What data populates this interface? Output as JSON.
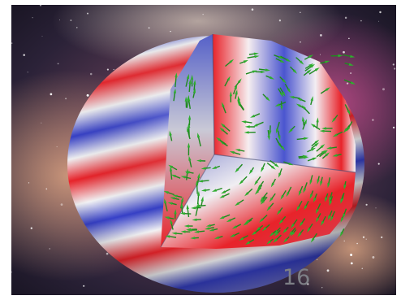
{
  "slide": {
    "page_number": "16",
    "illustration": "cutaway-sphere-flow-field",
    "colors": {
      "warm_band": "#e8232a",
      "cool_band": "#3640c8",
      "neutral_band": "#f2f2f4",
      "arrow_green": "#1f8a1f"
    }
  }
}
